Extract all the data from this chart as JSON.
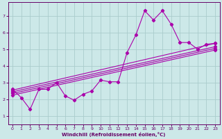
{
  "bg_color": "#cce8e8",
  "grid_color": "#aacccc",
  "line_color": "#aa00aa",
  "xlabel": "Windchill (Refroidissement éolien,°C)",
  "xlabel_color": "#660066",
  "tick_color": "#660066",
  "xlim": [
    -0.5,
    23.5
  ],
  "ylim": [
    0.5,
    7.8
  ],
  "xticks": [
    0,
    1,
    2,
    3,
    4,
    5,
    6,
    7,
    8,
    9,
    10,
    11,
    12,
    13,
    14,
    15,
    16,
    17,
    18,
    19,
    20,
    21,
    22,
    23
  ],
  "yticks": [
    1,
    2,
    3,
    4,
    5,
    6,
    7
  ],
  "main_x": [
    0,
    1,
    2,
    3,
    4,
    5,
    6,
    7,
    8,
    9,
    10,
    11,
    12,
    13,
    14,
    15,
    16,
    17,
    18,
    19,
    20,
    21,
    22,
    23
  ],
  "main_y": [
    2.6,
    2.1,
    1.4,
    2.6,
    2.6,
    3.0,
    2.2,
    1.95,
    2.3,
    2.5,
    3.15,
    3.05,
    3.05,
    4.8,
    5.85,
    7.3,
    6.75,
    7.3,
    6.5,
    5.4,
    5.4,
    5.0,
    5.3,
    5.35
  ],
  "trend1_x": [
    0,
    23
  ],
  "trend1_y": [
    2.55,
    5.35
  ],
  "trend2_x": [
    0,
    23
  ],
  "trend2_y": [
    2.45,
    5.15
  ],
  "trend3_x": [
    0,
    23
  ],
  "trend3_y": [
    2.35,
    5.05
  ],
  "trend4_x": [
    0,
    23
  ],
  "trend4_y": [
    2.25,
    4.95
  ]
}
